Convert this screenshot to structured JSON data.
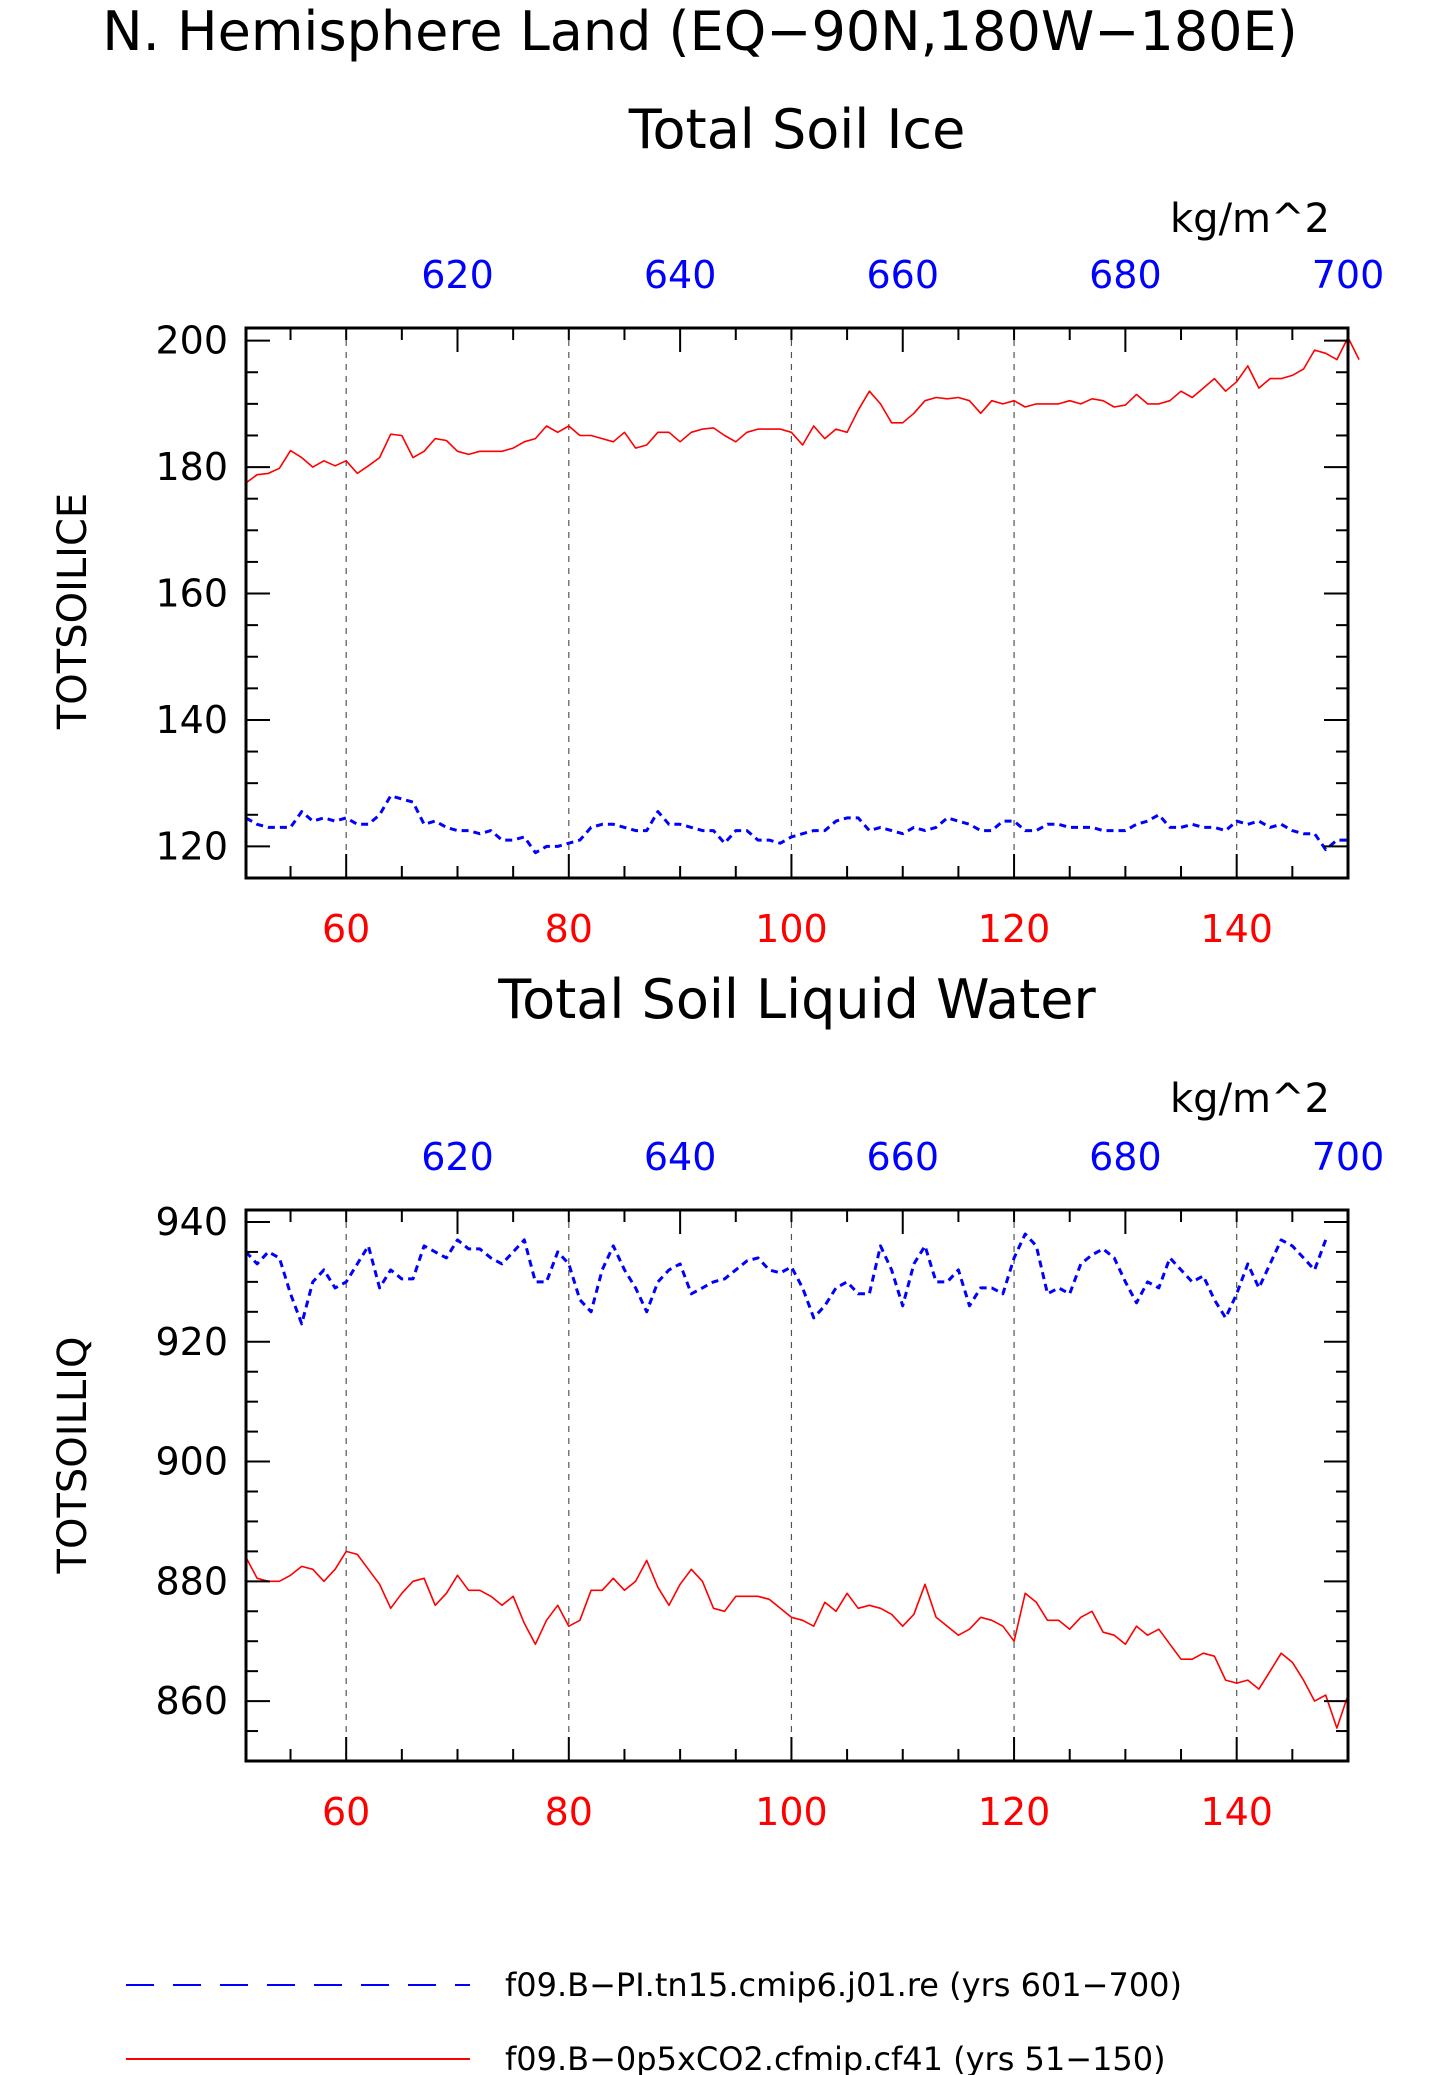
{
  "figure": {
    "main_title": "N. Hemisphere Land (EQ−90N,180W−180E)"
  },
  "colors": {
    "bottom_axis": "#ff0000",
    "top_axis": "#0000ff",
    "frame": "#000000",
    "grid": "#555555"
  },
  "legend": [
    {
      "label": "f09.B−PI.tn15.cmip6.j01.re (yrs 601−700)",
      "color": "#0000ff",
      "style": "dashed"
    },
    {
      "label": "f09.B−0p5xCO2.cfmip.cf41 (yrs 51−150)",
      "color": "#ff0000",
      "style": "solid"
    }
  ],
  "chart_data": [
    {
      "type": "line",
      "title": "Total Soil Ice",
      "ylabel": "TOTSOILICE",
      "top_xlabel": "kg/m^2",
      "xlim_bottom": [
        51,
        150
      ],
      "xlim_top": [
        601,
        700
      ],
      "ylim": [
        115,
        202
      ],
      "x_ticks_bottom": [
        60,
        80,
        100,
        120,
        140
      ],
      "x_ticks_top": [
        620,
        640,
        660,
        680,
        700
      ],
      "y_ticks": [
        120,
        140,
        160,
        180,
        200
      ],
      "grid_vertical": true,
      "series": [
        {
          "name": "f09.B−0p5xCO2.cfmip.cf41 (yrs 51−150)",
          "axis": "bottom",
          "color": "#ff0000",
          "style": "solid",
          "x_start": 51,
          "values": [
            177.5,
            178.8,
            179.0,
            179.8,
            182.6,
            181.5,
            180.0,
            181.0,
            180.2,
            181.0,
            179.0,
            180.2,
            181.5,
            185.2,
            185.0,
            181.5,
            182.5,
            184.5,
            184.2,
            182.5,
            182.0,
            182.5,
            182.5,
            182.5,
            183.0,
            184.0,
            184.5,
            186.5,
            185.5,
            186.5,
            185.0,
            185.0,
            184.5,
            184.0,
            185.5,
            183.0,
            183.5,
            185.5,
            185.5,
            184.0,
            185.5,
            186.0,
            186.2,
            185.0,
            184.0,
            185.5,
            186.0,
            186.0,
            186.0,
            185.5,
            183.5,
            186.5,
            184.5,
            186.0,
            185.5,
            189.0,
            192.0,
            190.0,
            187.0,
            187.0,
            188.5,
            190.5,
            191.0,
            190.8,
            191.0,
            190.5,
            188.5,
            190.5,
            190.0,
            190.5,
            189.5,
            190.0,
            190.0,
            190.0,
            190.5,
            190.0,
            190.8,
            190.5,
            189.5,
            189.8,
            191.5,
            190.0,
            190.0,
            190.5,
            192.0,
            191.0,
            192.5,
            194.0,
            192.0,
            193.5,
            196.0,
            192.5,
            194.0,
            194.0,
            194.5,
            195.5,
            198.5,
            198.0,
            197.0,
            200.5,
            197.0
          ]
        },
        {
          "name": "f09.B−PI.tn15.cmip6.j01.re (yrs 601−700)",
          "axis": "top",
          "color": "#0000ff",
          "style": "dashed",
          "x_start": 51,
          "values": [
            124.5,
            123.5,
            123.0,
            123.0,
            123.0,
            125.5,
            124.0,
            124.5,
            124.0,
            124.5,
            123.5,
            123.5,
            125.0,
            128.0,
            127.5,
            127.0,
            123.5,
            124.0,
            123.0,
            122.5,
            122.5,
            122.0,
            122.5,
            121.0,
            121.0,
            121.5,
            119.0,
            120.0,
            120.0,
            120.5,
            121.0,
            123.0,
            123.5,
            123.5,
            123.0,
            122.5,
            122.5,
            125.5,
            123.5,
            123.5,
            123.0,
            122.5,
            122.5,
            120.5,
            122.5,
            122.5,
            121.0,
            121.0,
            120.5,
            121.5,
            122.0,
            122.5,
            122.5,
            124.0,
            124.5,
            124.5,
            122.5,
            123.0,
            122.5,
            122.0,
            123.0,
            122.5,
            123.0,
            124.5,
            124.0,
            123.5,
            122.5,
            122.5,
            124.0,
            124.0,
            122.5,
            122.5,
            123.5,
            123.5,
            123.0,
            123.0,
            123.0,
            122.5,
            122.5,
            122.5,
            123.5,
            124.0,
            125.0,
            123.0,
            123.0,
            123.5,
            123.0,
            123.0,
            122.5,
            124.0,
            123.5,
            124.0,
            123.0,
            123.5,
            122.5,
            122.0,
            122.0,
            119.5,
            121.0,
            121.0
          ]
        }
      ]
    },
    {
      "type": "line",
      "title": "Total Soil Liquid Water",
      "ylabel": "TOTSOILLIQ",
      "top_xlabel": "kg/m^2",
      "xlim_bottom": [
        51,
        150
      ],
      "xlim_top": [
        601,
        700
      ],
      "ylim": [
        850,
        942
      ],
      "x_ticks_bottom": [
        60,
        80,
        100,
        120,
        140
      ],
      "x_ticks_top": [
        620,
        640,
        660,
        680,
        700
      ],
      "y_ticks": [
        860,
        880,
        900,
        920,
        940
      ],
      "grid_vertical": true,
      "series": [
        {
          "name": "f09.B−0p5xCO2.cfmip.cf41 (yrs 51−150)",
          "axis": "bottom",
          "color": "#ff0000",
          "style": "solid",
          "x_start": 51,
          "values": [
            884,
            880.5,
            880,
            880,
            881,
            882.5,
            882,
            880,
            882,
            885,
            884.5,
            882,
            879.5,
            875.5,
            878,
            880,
            880.5,
            876,
            878,
            881,
            878.5,
            878.5,
            877.5,
            876,
            877.5,
            873,
            869.5,
            873.5,
            876,
            872.5,
            873.5,
            878.5,
            878.5,
            880.5,
            878.5,
            880,
            883.5,
            879,
            876,
            879.5,
            882,
            880,
            875.5,
            875,
            877.5,
            877.5,
            877.5,
            877,
            875.5,
            874,
            873.5,
            872.5,
            876.5,
            875,
            878,
            875.5,
            876,
            875.5,
            874.5,
            872.5,
            874.5,
            879.5,
            874,
            872.5,
            871,
            872,
            874,
            873.5,
            872.5,
            870,
            878,
            876.5,
            873.5,
            873.5,
            872,
            874,
            875,
            871.5,
            871,
            869.5,
            872.5,
            871,
            872,
            869.5,
            867,
            867,
            868,
            867.5,
            863.5,
            863,
            863.5,
            862,
            865,
            868,
            866.5,
            863.5,
            860,
            861,
            855.5,
            861
          ]
        },
        {
          "name": "f09.B−PI.tn15.cmip6.j01.re (yrs 601−700)",
          "axis": "top",
          "color": "#0000ff",
          "style": "dashed",
          "x_start": 51,
          "values": [
            935,
            933,
            935,
            934,
            928,
            923,
            930,
            932,
            929,
            930,
            933,
            936,
            929,
            932,
            930.5,
            930.5,
            936,
            935,
            934,
            937,
            935.5,
            935.5,
            934,
            933,
            935,
            937,
            930,
            930,
            935,
            933,
            927,
            925,
            932,
            936,
            932,
            929,
            925,
            930,
            932,
            933,
            928,
            929,
            930,
            930.5,
            932,
            933.5,
            934,
            932,
            931.5,
            932.5,
            929,
            924,
            926,
            929,
            930,
            928,
            928,
            936,
            932,
            926,
            933,
            936,
            930,
            930,
            932,
            926,
            929,
            929,
            928,
            934,
            938,
            936,
            928,
            929,
            928,
            933,
            934.5,
            935.5,
            934,
            930,
            926.5,
            930,
            929,
            934,
            932,
            930,
            931,
            927,
            924,
            928,
            933,
            929,
            933,
            937,
            936,
            934,
            932,
            937
          ]
        }
      ]
    }
  ]
}
